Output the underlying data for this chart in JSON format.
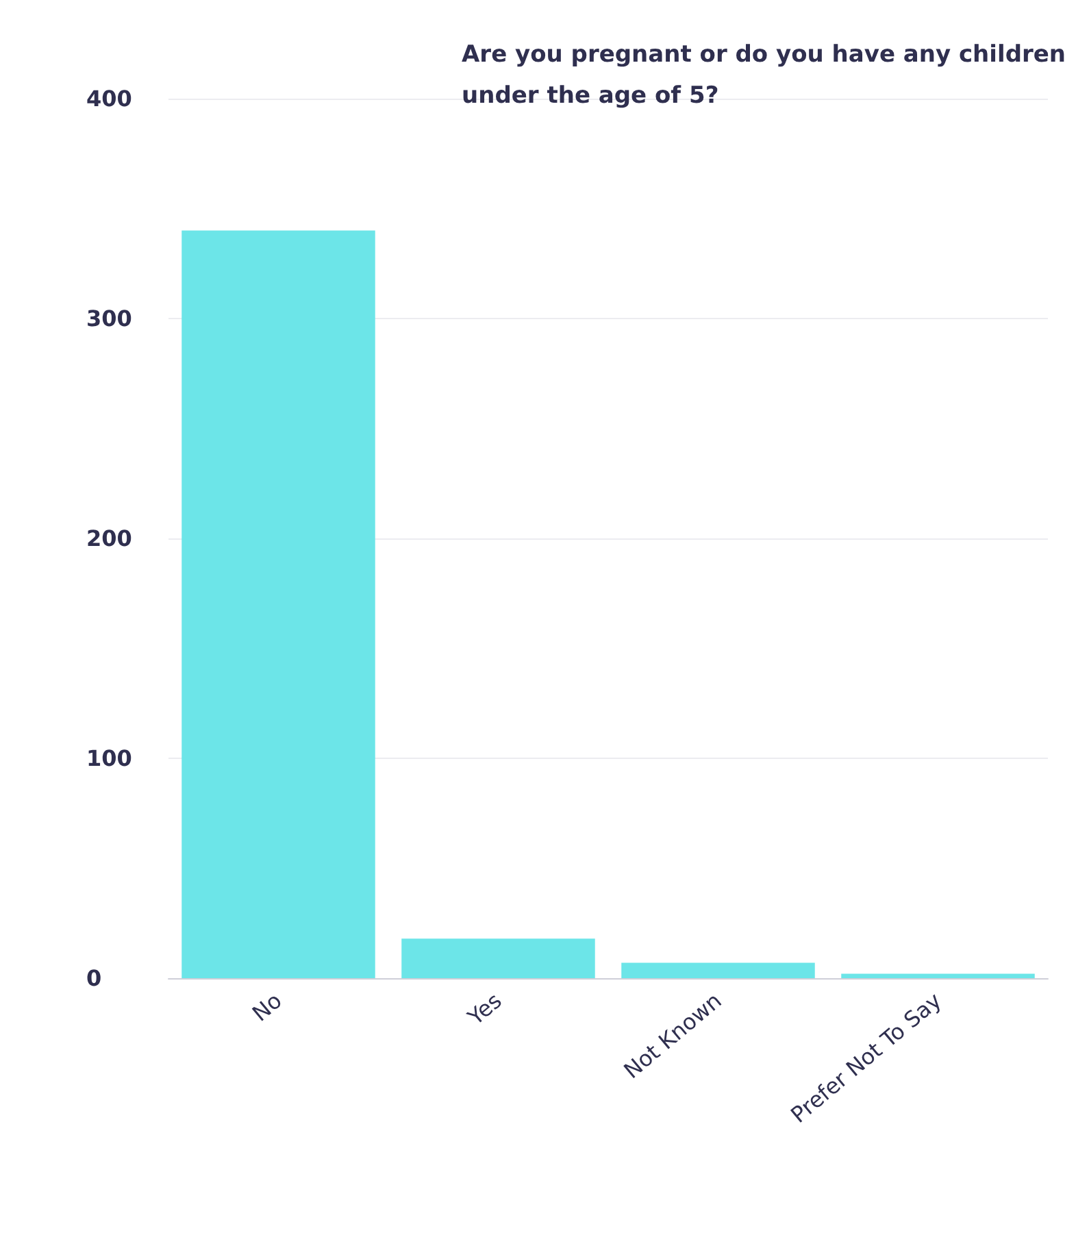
{
  "chart_data": {
    "type": "bar",
    "title": "Are you pregnant or do you have any children\nunder the age of 5?",
    "categories": [
      "No",
      "Yes",
      "Not Known",
      "Prefer Not To Say"
    ],
    "values": [
      340,
      18,
      7,
      2
    ],
    "color": "#6ce5e8",
    "ylim": [
      0,
      400
    ],
    "yticks": [
      0,
      100,
      200,
      300,
      400
    ],
    "grid": "y"
  }
}
